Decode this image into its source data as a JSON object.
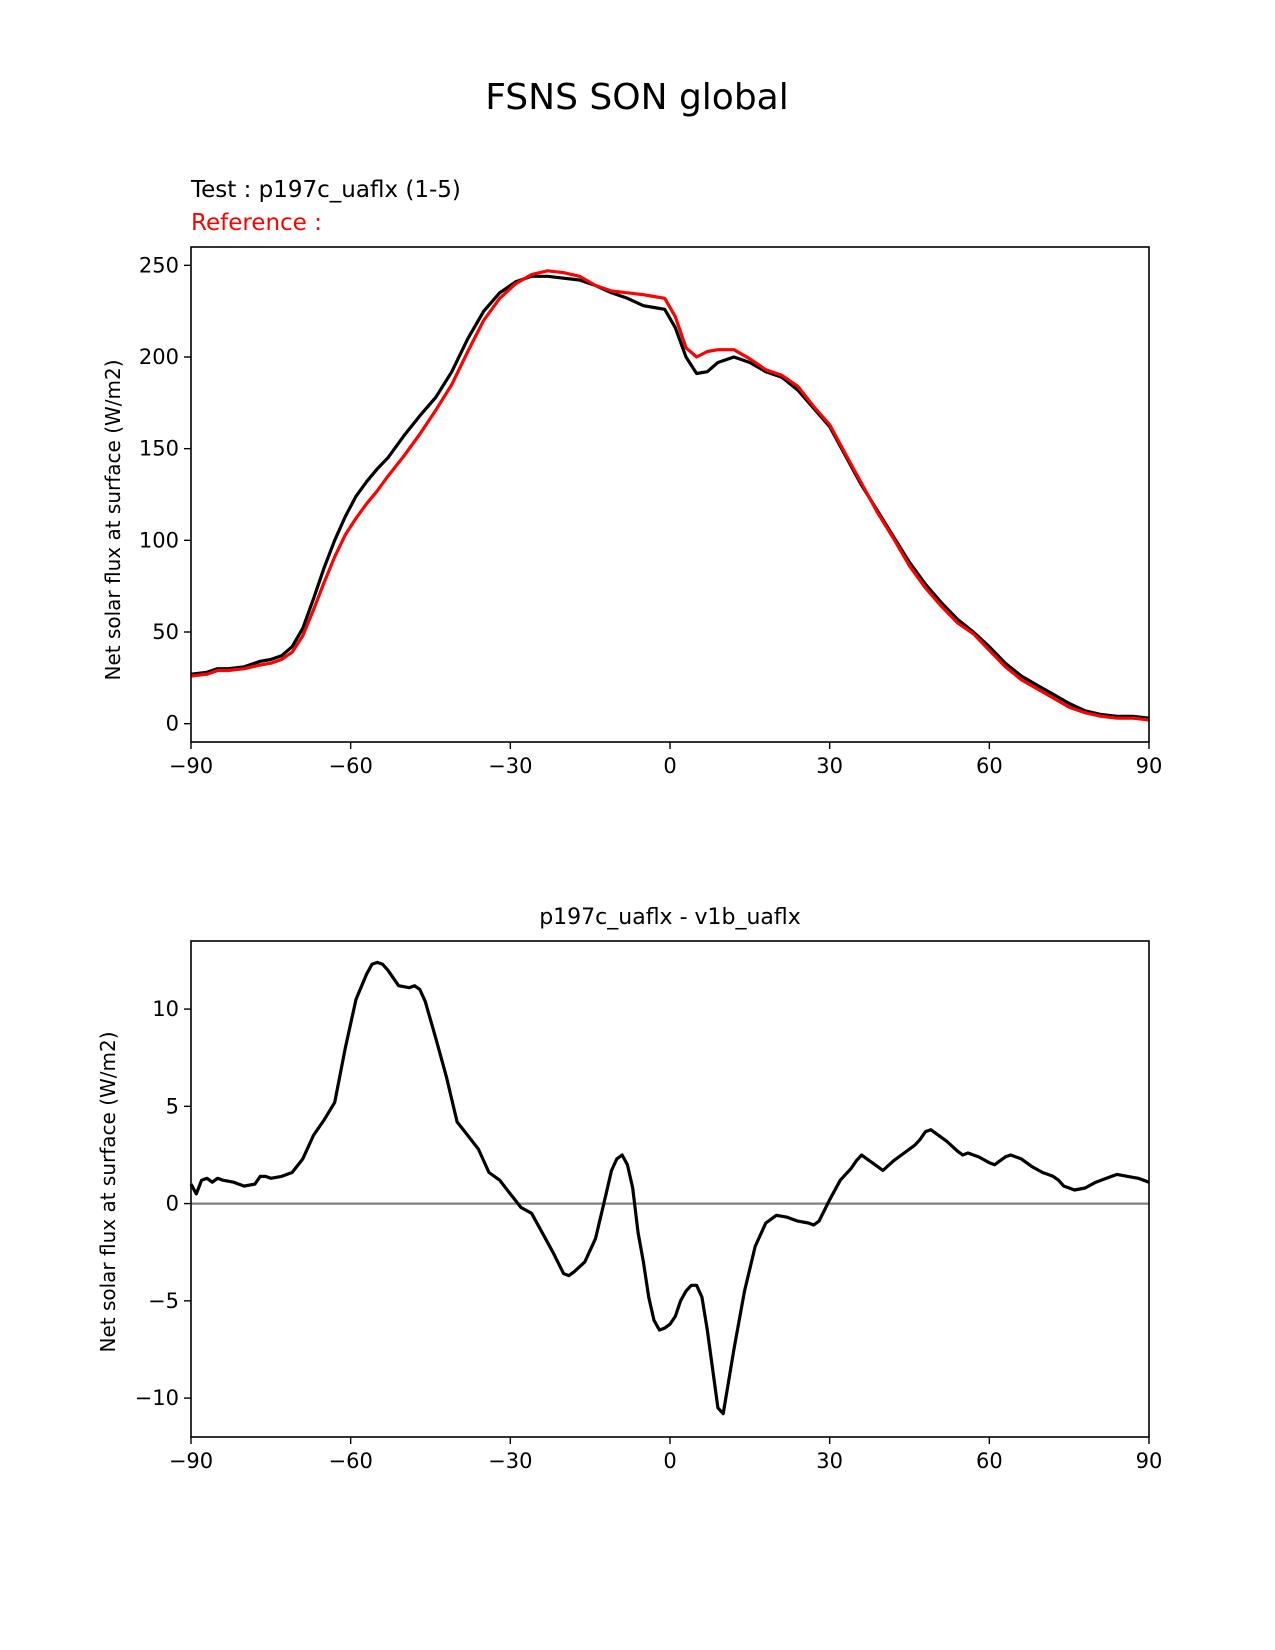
{
  "figure": {
    "title": "FSNS SON global"
  },
  "chart_data": [
    {
      "type": "line",
      "test_label": "Test : p197c_uaflx (1-5)",
      "reference_label": "Reference :",
      "xlabel": "",
      "ylabel": "Net solar flux at surface (W/m2)",
      "xlim": [
        -90,
        90
      ],
      "ylim": [
        -10,
        260
      ],
      "xticks": [
        "−90",
        "−60",
        "−30",
        "0",
        "30",
        "60",
        "90"
      ],
      "yticks": [
        "0",
        "50",
        "100",
        "150",
        "200",
        "250"
      ],
      "grid": false,
      "colors": {
        "test": "#000000",
        "reference": "#ff0000"
      },
      "series": [
        {
          "key": "test",
          "x": [
            -90,
            -87,
            -85,
            -83,
            -80,
            -77,
            -75,
            -73,
            -71,
            -69,
            -67,
            -65,
            -63,
            -61,
            -59,
            -57,
            -55,
            -53,
            -50,
            -47,
            -44,
            -41,
            -38,
            -35,
            -32,
            -29,
            -26,
            -23,
            -20,
            -17,
            -14,
            -11,
            -8,
            -5,
            -3,
            -1,
            1,
            3,
            5,
            7,
            9,
            12,
            15,
            18,
            21,
            24,
            27,
            30,
            33,
            36,
            39,
            42,
            45,
            48,
            51,
            54,
            57,
            60,
            63,
            66,
            69,
            72,
            75,
            78,
            81,
            84,
            87,
            90
          ],
          "y": [
            27,
            28,
            30,
            30,
            31,
            34,
            35,
            37,
            42,
            52,
            68,
            85,
            100,
            113,
            124,
            132,
            139,
            145,
            157,
            168,
            178,
            192,
            210,
            225,
            235,
            241,
            244,
            244,
            243,
            242,
            239,
            235,
            232,
            228,
            227,
            226,
            216,
            200,
            191,
            192,
            197,
            200,
            197,
            192,
            189,
            182,
            172,
            162,
            146,
            130,
            116,
            102,
            88,
            76,
            66,
            57,
            50,
            42,
            33,
            26,
            21,
            16,
            11,
            7,
            5,
            4,
            4,
            3
          ]
        },
        {
          "key": "reference",
          "x": [
            -90,
            -87,
            -85,
            -83,
            -80,
            -77,
            -75,
            -73,
            -71,
            -69,
            -67,
            -65,
            -63,
            -61,
            -59,
            -57,
            -55,
            -53,
            -50,
            -47,
            -44,
            -41,
            -38,
            -35,
            -32,
            -29,
            -26,
            -23,
            -20,
            -17,
            -14,
            -11,
            -8,
            -5,
            -3,
            -1,
            1,
            3,
            5,
            7,
            9,
            12,
            15,
            18,
            21,
            24,
            27,
            30,
            33,
            36,
            39,
            42,
            45,
            48,
            51,
            54,
            57,
            60,
            63,
            66,
            69,
            72,
            75,
            78,
            81,
            84,
            87,
            90
          ],
          "y": [
            26,
            27,
            29,
            29,
            30,
            32,
            33,
            35,
            39,
            48,
            62,
            77,
            91,
            103,
            112,
            120,
            127,
            135,
            146,
            158,
            171,
            185,
            203,
            220,
            232,
            240,
            245,
            247,
            246,
            244,
            239,
            236,
            235,
            234,
            233,
            232,
            222,
            205,
            200,
            203,
            204,
            204,
            199,
            193,
            190,
            184,
            173,
            163,
            147,
            131,
            115,
            101,
            86,
            74,
            64,
            55,
            49,
            40,
            31,
            24,
            19,
            14,
            9,
            6,
            4,
            3,
            3,
            2
          ]
        }
      ]
    },
    {
      "type": "line",
      "title": "p197c_uaflx - v1b_uaflx",
      "xlabel": "",
      "ylabel": "Net solar flux at surface (W/m2)",
      "xlim": [
        -90,
        90
      ],
      "ylim": [
        -12,
        13.5
      ],
      "xticks": [
        "−90",
        "−60",
        "−30",
        "0",
        "30",
        "60",
        "90"
      ],
      "yticks": [
        "−10",
        "−5",
        "0",
        "5",
        "10"
      ],
      "zero_line": {
        "y": 0,
        "color": "#808080"
      },
      "grid": false,
      "series": [
        {
          "key": "difference",
          "color": "#000000",
          "x": [
            -90,
            -89,
            -88,
            -87,
            -86,
            -85,
            -84,
            -82,
            -80,
            -78,
            -77,
            -76,
            -75,
            -73,
            -71,
            -69,
            -67,
            -65,
            -63,
            -61,
            -59,
            -57,
            -56,
            -55,
            -54,
            -53,
            -51,
            -49,
            -48,
            -47,
            -46,
            -44,
            -42,
            -40,
            -38,
            -36,
            -34,
            -32,
            -30,
            -28,
            -26,
            -24,
            -22,
            -20,
            -19,
            -18,
            -16,
            -14,
            -12,
            -11,
            -10,
            -9,
            -8,
            -7,
            -6,
            -5,
            -4,
            -3,
            -2,
            -1,
            0,
            1,
            2,
            3,
            4,
            5,
            6,
            7,
            8,
            9,
            10,
            12,
            14,
            16,
            18,
            20,
            22,
            24,
            26,
            27,
            28,
            30,
            32,
            34,
            35,
            36,
            37,
            38,
            39,
            40,
            42,
            44,
            46,
            47,
            48,
            49,
            50,
            52,
            54,
            55,
            56,
            58,
            60,
            61,
            62,
            63,
            64,
            66,
            68,
            70,
            71,
            72,
            73,
            74,
            75,
            76,
            78,
            80,
            82,
            84,
            86,
            88,
            90
          ],
          "y": [
            1.0,
            0.5,
            1.2,
            1.3,
            1.1,
            1.3,
            1.2,
            1.1,
            0.9,
            1.0,
            1.4,
            1.4,
            1.3,
            1.4,
            1.6,
            2.3,
            3.5,
            4.3,
            5.2,
            8.0,
            10.5,
            11.8,
            12.3,
            12.4,
            12.3,
            12.0,
            11.2,
            11.1,
            11.2,
            11.0,
            10.4,
            8.5,
            6.5,
            4.2,
            3.5,
            2.8,
            1.6,
            1.2,
            0.5,
            -0.2,
            -0.5,
            -1.5,
            -2.5,
            -3.6,
            -3.7,
            -3.5,
            -3.0,
            -1.8,
            0.5,
            1.7,
            2.3,
            2.5,
            2.0,
            0.8,
            -1.5,
            -3.0,
            -4.8,
            -6.0,
            -6.5,
            -6.4,
            -6.2,
            -5.8,
            -5.0,
            -4.5,
            -4.2,
            -4.2,
            -4.8,
            -6.5,
            -8.5,
            -10.5,
            -10.8,
            -7.5,
            -4.5,
            -2.2,
            -1.0,
            -0.6,
            -0.7,
            -0.9,
            -1.0,
            -1.1,
            -0.9,
            0.2,
            1.2,
            1.8,
            2.2,
            2.5,
            2.3,
            2.1,
            1.9,
            1.7,
            2.2,
            2.6,
            3.0,
            3.3,
            3.7,
            3.8,
            3.6,
            3.2,
            2.7,
            2.5,
            2.6,
            2.4,
            2.1,
            2.0,
            2.2,
            2.4,
            2.5,
            2.3,
            1.9,
            1.6,
            1.5,
            1.4,
            1.2,
            0.9,
            0.8,
            0.7,
            0.8,
            1.1,
            1.3,
            1.5,
            1.4,
            1.3,
            1.1
          ]
        }
      ]
    }
  ]
}
